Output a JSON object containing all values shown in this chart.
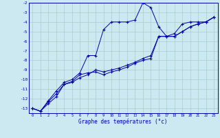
{
  "xlabel": "Graphe des températures (°c)",
  "background_color": "#cce8f0",
  "grid_color": "#aacccc",
  "line_color": "#0000aa",
  "x_values": [
    0,
    1,
    2,
    3,
    4,
    5,
    6,
    7,
    8,
    9,
    10,
    11,
    12,
    13,
    14,
    15,
    16,
    17,
    18,
    19,
    20,
    21,
    22,
    23
  ],
  "series1": [
    -13,
    -13.3,
    -12.2,
    -11.2,
    -10.3,
    -10.0,
    -9.3,
    -7.5,
    -7.5,
    -4.8,
    -4.0,
    -4.0,
    -4.0,
    -3.8,
    -2.0,
    -2.5,
    -4.5,
    -5.5,
    -5.2,
    -4.2,
    -4.0,
    -4.0,
    -4.0,
    -3.5
  ],
  "series2": [
    -13,
    -13.3,
    -12.5,
    -11.8,
    -10.5,
    -10.3,
    -9.8,
    -9.5,
    -9.0,
    -9.2,
    -9.0,
    -8.8,
    -8.5,
    -8.2,
    -7.8,
    -7.5,
    -5.5,
    -5.5,
    -5.5,
    -5.0,
    -4.5,
    -4.2,
    -4.0,
    -3.5
  ],
  "series3": [
    -13,
    -13.3,
    -12.3,
    -11.5,
    -10.5,
    -10.2,
    -9.5,
    -9.3,
    -9.2,
    -9.5,
    -9.2,
    -9.0,
    -8.7,
    -8.3,
    -8.0,
    -7.8,
    -5.5,
    -5.5,
    -5.5,
    -5.0,
    -4.5,
    -4.2,
    -4.0,
    -3.5
  ],
  "ylim": [
    -13.5,
    -2
  ],
  "xlim": [
    -0.5,
    23.5
  ],
  "yticks": [
    -13,
    -12,
    -11,
    -10,
    -9,
    -8,
    -7,
    -6,
    -5,
    -4,
    -3,
    -2
  ],
  "xticks": [
    0,
    1,
    2,
    3,
    4,
    5,
    6,
    7,
    8,
    9,
    10,
    11,
    12,
    13,
    14,
    15,
    16,
    17,
    18,
    19,
    20,
    21,
    22,
    23
  ]
}
